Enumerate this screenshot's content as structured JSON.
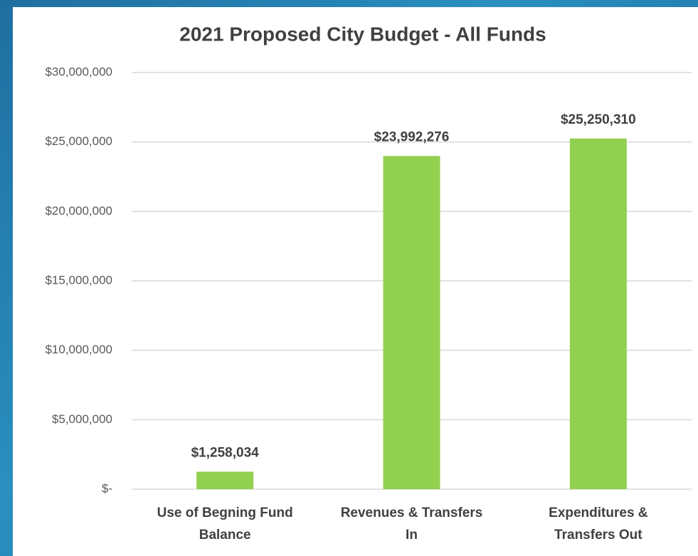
{
  "chart_data": {
    "type": "bar",
    "title": "2021 Proposed City Budget - All Funds",
    "categories": [
      [
        "Use of Begning Fund",
        "Balance"
      ],
      [
        "Revenues & Transfers",
        "In"
      ],
      [
        "Expenditures &",
        "Transfers Out"
      ]
    ],
    "values": [
      1258034,
      23992276,
      25250310
    ],
    "value_labels": [
      "$1,258,034",
      "$23,992,276",
      "$25,250,310"
    ],
    "color": "#92d050",
    "ylim": [
      0,
      30000000
    ],
    "yticks": [
      {
        "value": 0,
        "label": "$-"
      },
      {
        "value": 5000000,
        "label": "$5,000,000"
      },
      {
        "value": 10000000,
        "label": "$10,000,000"
      },
      {
        "value": 15000000,
        "label": "$15,000,000"
      },
      {
        "value": 20000000,
        "label": "$20,000,000"
      },
      {
        "value": 25000000,
        "label": "$25,000,000"
      },
      {
        "value": 30000000,
        "label": "$30,000,000"
      }
    ],
    "grid": true
  }
}
